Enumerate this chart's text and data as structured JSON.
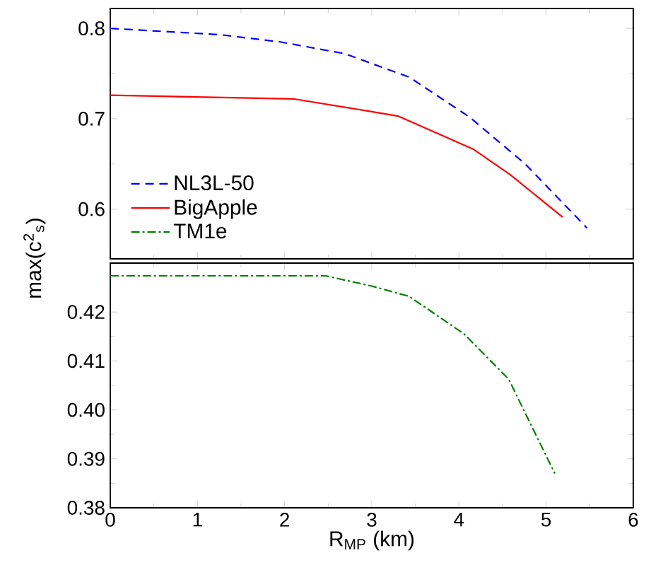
{
  "chart_data": [
    {
      "type": "line",
      "xlim": [
        0,
        6
      ],
      "xticks": [
        0,
        1,
        2,
        3,
        4,
        5,
        6
      ],
      "ylim": [
        0.545,
        0.822
      ],
      "yticks": [
        0.6,
        0.7,
        0.8
      ],
      "tick_labels": "y",
      "legend": "bottom left",
      "series": [
        {
          "name": "NL3L-50",
          "color": "#0000ff",
          "line_style": "dashed",
          "x": [
            0,
            1.26,
            1.95,
            2.69,
            3.43,
            4.12,
            4.76,
            5.47
          ],
          "values": [
            0.8,
            0.793,
            0.785,
            0.772,
            0.746,
            0.702,
            0.65,
            0.579
          ]
        },
        {
          "name": "BigApple",
          "color": "#ff0000",
          "line_style": "solid",
          "x": [
            0,
            2.1,
            2.74,
            3.3,
            4.17,
            4.59,
            5.19
          ],
          "values": [
            0.726,
            0.722,
            0.712,
            0.703,
            0.666,
            0.638,
            0.591
          ]
        }
      ]
    },
    {
      "type": "line",
      "xlabel": "R$_{MP}$ (km)",
      "ylabel": "max(c$^{2}$$_{s}$)",
      "xlim": [
        0,
        6
      ],
      "xticks": [
        0,
        1,
        2,
        3,
        4,
        5,
        6
      ],
      "ylim": [
        0.38,
        0.43
      ],
      "yticks": [
        0.38,
        0.39,
        {
          "value": 0.4,
          "label": "0.40"
        },
        0.41,
        0.42
      ],
      "series": [
        {
          "name": "TM1e",
          "color": "#008000",
          "line_style": "dashdot",
          "x": [
            0,
            2.47,
            3.0,
            3.43,
            4.06,
            4.57,
            5.1
          ],
          "values": [
            0.4274,
            0.4274,
            0.4253,
            0.4232,
            0.4155,
            0.4063,
            0.387
          ]
        }
      ]
    }
  ]
}
